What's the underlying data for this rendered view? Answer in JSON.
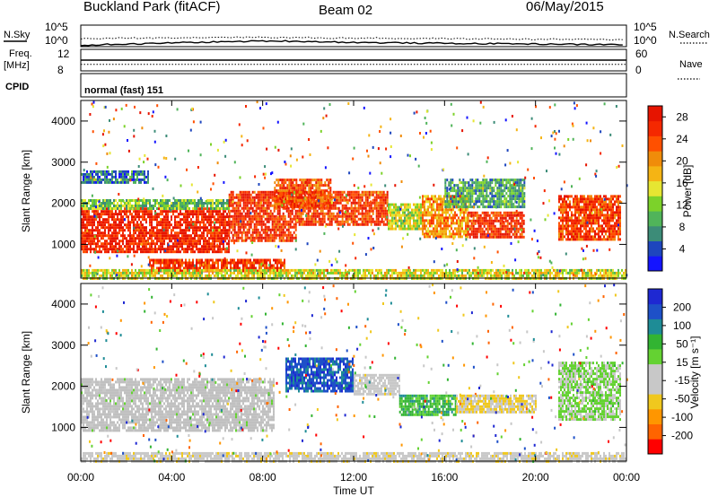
{
  "header": {
    "station": "Buckland Park (fitACF)",
    "beam": "Beam 02",
    "date": "06/May/2015"
  },
  "side_labels": {
    "nsky": "N.Sky",
    "nsearch": "N.Search",
    "freq_line1": "Freq.",
    "freq_line2": "[MHz]",
    "nave": "Nave",
    "cpid": "CPID",
    "cpid_value": "normal (fast) 151"
  },
  "colors": {
    "power": [
      "#1414ff",
      "#1e46be",
      "#3c8c78",
      "#50b45a",
      "#7cd22a",
      "#e6e632",
      "#f5b414",
      "#f08c0a",
      "#ff5000",
      "#f52800",
      "#e61400"
    ],
    "velocity": [
      "#ff0000",
      "#ff6400",
      "#ff9600",
      "#f0c81e",
      "#c8c8c8",
      "#c8c8c8",
      "#64d232",
      "#32b432",
      "#1e8c96",
      "#1e50c8",
      "#1e28d2"
    ],
    "ground_scatter": "#c0c0c0"
  },
  "chart_data": [
    {
      "type": "line",
      "name": "noise",
      "left_axis": {
        "label": "N.Sky",
        "ticks": [
          "10^5",
          "10^0"
        ],
        "scale": "log"
      },
      "right_axis": {
        "label": "N.Search",
        "ticks": [
          "10^5",
          "10^0"
        ],
        "scale": "log"
      },
      "series": [
        {
          "name": "N.Sky",
          "style": "solid",
          "values_log10": [
            0.3,
            0.5,
            0.6,
            0.7,
            0.9,
            1.0,
            1.1,
            1.2,
            1.3,
            1.3,
            1.2,
            1.1,
            1.0,
            0.9,
            0.9,
            0.8,
            0.8,
            0.7,
            0.7,
            0.7,
            0.6,
            0.6,
            0.5,
            0.5
          ]
        },
        {
          "name": "N.Search",
          "style": "dotted",
          "values_log10": [
            1.8,
            1.9,
            2.0,
            2.0,
            2.1,
            2.1,
            2.2,
            2.2,
            2.2,
            2.1,
            2.1,
            2.0,
            2.0,
            2.0,
            1.9,
            1.9,
            1.9,
            1.8,
            1.8,
            1.8,
            1.7,
            1.7,
            1.7,
            1.6
          ]
        }
      ]
    },
    {
      "type": "line",
      "name": "frequency",
      "left_axis": {
        "ticks": [
          "12",
          "8"
        ]
      },
      "right_axis": {
        "label": "Nave",
        "ticks": [
          "60",
          "0"
        ]
      },
      "series": [
        {
          "name": "Freq",
          "style": "solid",
          "value_mhz": 10.0
        },
        {
          "name": "Nave",
          "style": "dotted",
          "value": 18
        }
      ]
    },
    {
      "type": "heatmap",
      "name": "power",
      "ylabel": "Slant Range [km]",
      "ylim": [
        180,
        4500
      ],
      "yticks": [
        "1000",
        "2000",
        "3000",
        "4000"
      ],
      "colorbar": {
        "label": "Power [dB]",
        "ticks": [
          "4",
          "8",
          "12",
          "16",
          "20",
          "24",
          "28"
        ],
        "range": [
          0,
          30
        ]
      },
      "regions": [
        {
          "t": [
            0,
            6.5
          ],
          "r": [
            800,
            1900
          ],
          "value": 27
        },
        {
          "t": [
            0,
            6.5
          ],
          "r": [
            1900,
            2100
          ],
          "value": 11
        },
        {
          "t": [
            0,
            3
          ],
          "r": [
            2500,
            2800
          ],
          "value": 6
        },
        {
          "t": [
            3,
            9
          ],
          "r": [
            350,
            650
          ],
          "value": 26
        },
        {
          "t": [
            6.5,
            9.5
          ],
          "r": [
            1100,
            2300
          ],
          "value": 26
        },
        {
          "t": [
            8.5,
            11
          ],
          "r": [
            1900,
            2600
          ],
          "value": 24
        },
        {
          "t": [
            9.5,
            13.5
          ],
          "r": [
            1500,
            2300
          ],
          "value": 25
        },
        {
          "t": [
            13.5,
            15
          ],
          "r": [
            1400,
            2000
          ],
          "value": 14
        },
        {
          "t": [
            15,
            17
          ],
          "r": [
            1200,
            2200
          ],
          "value": 20
        },
        {
          "t": [
            17,
            19.5
          ],
          "r": [
            1200,
            1800
          ],
          "value": 26
        },
        {
          "t": [
            16,
            19.5
          ],
          "r": [
            1900,
            2600
          ],
          "value": 9
        },
        {
          "t": [
            21,
            23.7
          ],
          "r": [
            1100,
            2200
          ],
          "value": 25
        },
        {
          "t": [
            0,
            24
          ],
          "r": [
            180,
            400
          ],
          "value": 15
        }
      ]
    },
    {
      "type": "heatmap",
      "name": "velocity",
      "xlabel": "Time UT",
      "xticks": [
        "00:00",
        "04:00",
        "08:00",
        "12:00",
        "16:00",
        "20:00",
        "00:00"
      ],
      "xlim": [
        0,
        24
      ],
      "ylabel": "Slant Range [km]",
      "ylim": [
        180,
        4500
      ],
      "yticks": [
        "1000",
        "2000",
        "3000",
        "4000"
      ],
      "colorbar": {
        "label": "Velocity [m s⁻¹]",
        "ticks": [
          "200",
          "100",
          "50",
          "15",
          "-15",
          "-50",
          "-100",
          "-200"
        ],
        "range": [
          -250,
          250
        ]
      },
      "regions": [
        {
          "t": [
            0,
            8.5
          ],
          "r": [
            900,
            2200
          ],
          "value": 0,
          "ground_scatter": true
        },
        {
          "t": [
            9,
            12
          ],
          "r": [
            1900,
            2700
          ],
          "value": 180
        },
        {
          "t": [
            12,
            14
          ],
          "r": [
            1800,
            2300
          ],
          "value": -30
        },
        {
          "t": [
            14,
            16.5
          ],
          "r": [
            1300,
            1800
          ],
          "value": 90
        },
        {
          "t": [
            16.5,
            20
          ],
          "r": [
            1400,
            1800
          ],
          "value": -70
        },
        {
          "t": [
            21,
            23.7
          ],
          "r": [
            1200,
            2600
          ],
          "value": 30
        },
        {
          "t": [
            0,
            24
          ],
          "r": [
            180,
            400
          ],
          "value": -40
        }
      ]
    }
  ]
}
